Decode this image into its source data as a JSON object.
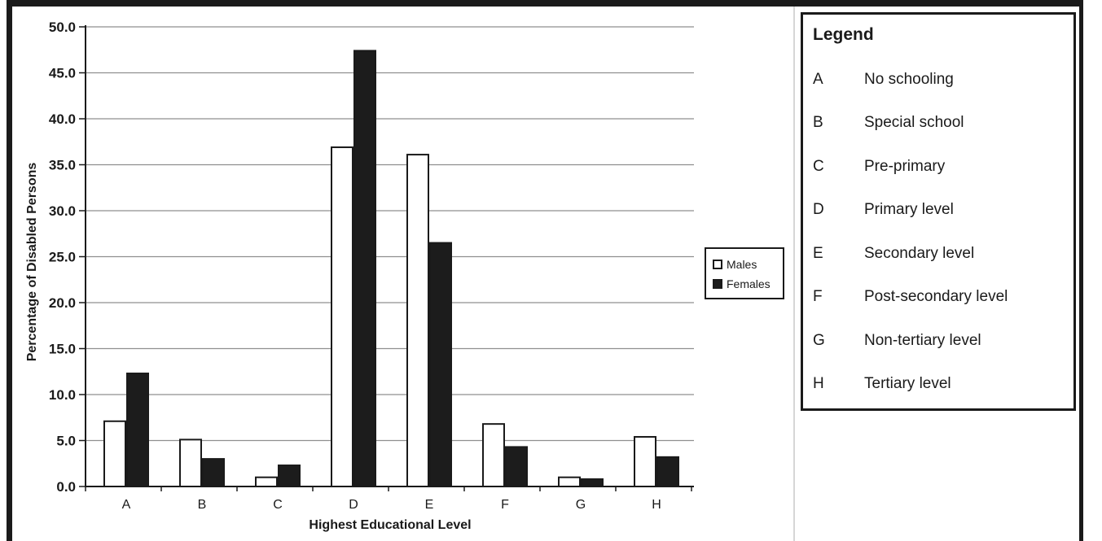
{
  "chart": {
    "y_axis_title": "Percentage of Disabled Persons",
    "x_axis_title": "Highest Educational Level"
  },
  "chart_data": {
    "type": "bar",
    "title": "",
    "categories": [
      "A",
      "B",
      "C",
      "D",
      "E",
      "F",
      "G",
      "H"
    ],
    "series": [
      {
        "name": "Males",
        "values": [
          7.1,
          5.1,
          1.0,
          36.9,
          36.1,
          6.8,
          1.0,
          5.4
        ]
      },
      {
        "name": "Females",
        "values": [
          12.3,
          3.0,
          2.3,
          47.4,
          26.5,
          4.3,
          0.8,
          3.2
        ]
      }
    ],
    "xlabel": "Highest Educational Level",
    "ylabel": "Percentage of Disabled Persons",
    "ylim": [
      0,
      50
    ],
    "ytick_step": 5,
    "ytick_labels": [
      "0.0",
      "5.0",
      "10.0",
      "15.0",
      "20.0",
      "25.0",
      "30.0",
      "35.0",
      "40.0",
      "45.0",
      "50.0"
    ],
    "grid": true,
    "legend_position": "right-of-plot"
  },
  "series_legend": {
    "males_label": "Males",
    "females_label": "Females"
  },
  "legend_box": {
    "title": "Legend",
    "items": [
      {
        "key": "A",
        "label": "No schooling"
      },
      {
        "key": "B",
        "label": "Special school"
      },
      {
        "key": "C",
        "label": "Pre-primary"
      },
      {
        "key": "D",
        "label": "Primary level"
      },
      {
        "key": "E",
        "label": "Secondary level"
      },
      {
        "key": "F",
        "label": "Post-secondary level"
      },
      {
        "key": "G",
        "label": "Non-tertiary level"
      },
      {
        "key": "H",
        "label": "Tertiary level"
      }
    ]
  },
  "colors": {
    "frame": "#1a1a1a",
    "axis": "#1a1a1a",
    "gridline": "#8f8f8f",
    "males_fill": "#ffffff",
    "females_fill": "#1c1c1c",
    "text": "#1a1a1a"
  }
}
